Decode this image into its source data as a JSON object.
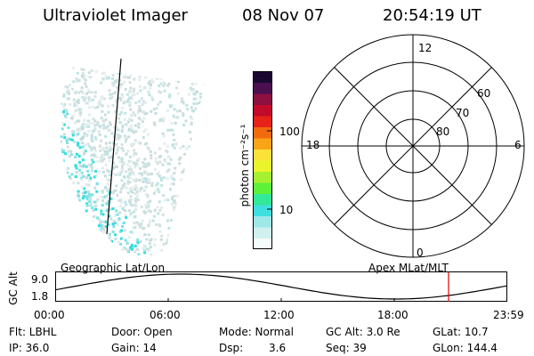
{
  "header": {
    "instrument": "Ultraviolet Imager",
    "date": "08 Nov 07",
    "time": "20:54:19 UT"
  },
  "colorbar": {
    "unit_label": "photon cm⁻²s⁻¹",
    "ticks": [
      "100",
      "10"
    ],
    "colors": [
      "#f4fbfb",
      "#d2f0f0",
      "#9fe8e8",
      "#3fdfdf",
      "#32e89a",
      "#5ef03a",
      "#a6f030",
      "#e9f52a",
      "#fbe23a",
      "#f9a318",
      "#f26a10",
      "#e6231a",
      "#c20a2a",
      "#8c1040",
      "#4a1050",
      "#1a0830"
    ]
  },
  "polar_plot": {
    "mlt_labels": [
      "12",
      "18",
      "6",
      "0"
    ],
    "lat_labels": [
      "60",
      "70",
      "80"
    ]
  },
  "timeline": {
    "left_title": "Geographic Lat/Lon",
    "right_title": "Apex MLat/MLT",
    "axis_label": "GC Alt",
    "y_top": "9.0",
    "y_bottom": "1.8",
    "x_ticks": [
      "00:00",
      "06:00",
      "12:00",
      "18:00",
      "23:59"
    ],
    "marker_color": "#e00000"
  },
  "info": {
    "filter": "Flt: LBHL",
    "ip": "IP: 36.0",
    "door": "Door: Open",
    "gain": "Gain: 14",
    "mode": "Mode: Normal",
    "dsp_label": "Dsp:",
    "dsp_value": "3.6",
    "gc_alt": "GC Alt: 3.0 Re",
    "seq": "Seq: 39",
    "glat": "GLat:  10.7",
    "glon": "GLon: 144.4"
  }
}
